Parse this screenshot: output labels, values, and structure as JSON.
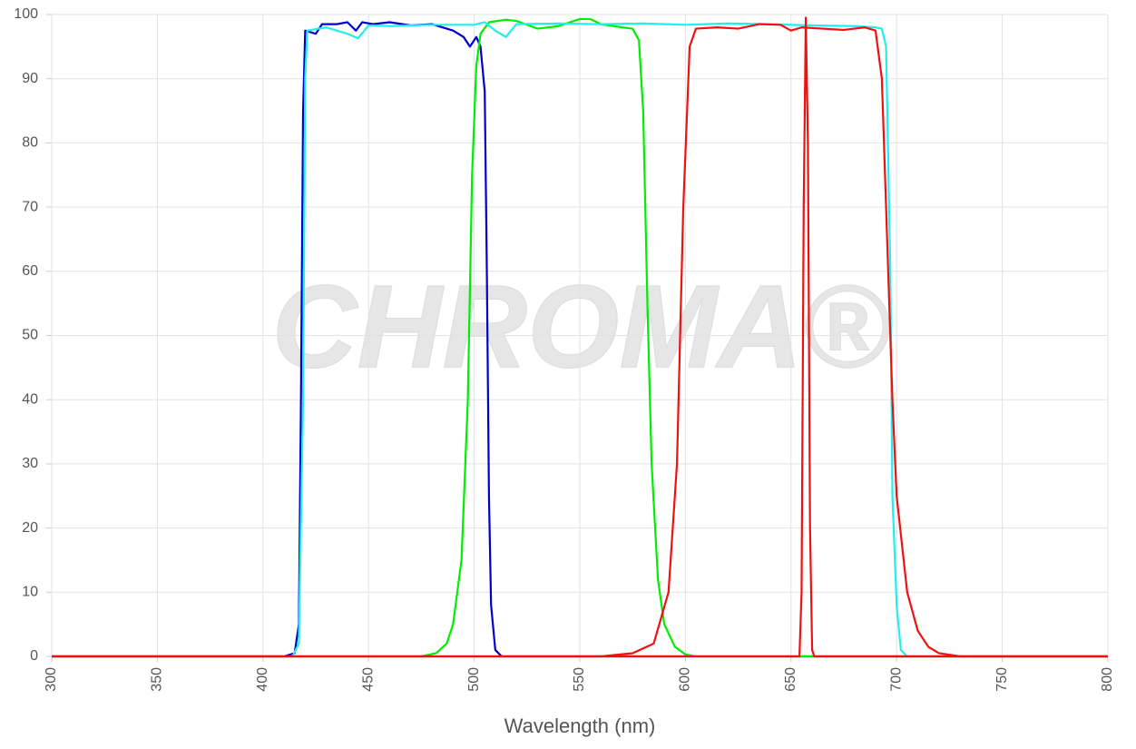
{
  "chart_data": {
    "type": "line",
    "xlabel": "Wavelength (nm)",
    "watermark": "CHROMA®",
    "xlim": [
      300,
      800
    ],
    "xticks": [
      300,
      350,
      400,
      450,
      500,
      550,
      600,
      650,
      700,
      750,
      800
    ],
    "ylim": [
      0,
      100
    ],
    "yticks": [
      0,
      10,
      20,
      30,
      40,
      50,
      60,
      70,
      80,
      90,
      100
    ],
    "grid": true,
    "series": [
      {
        "color": "#0000cc",
        "x": [
          300,
          410,
          415,
          417,
          418,
          419,
          420,
          425,
          428,
          435,
          440,
          444,
          447,
          452,
          460,
          470,
          480,
          490,
          495,
          498,
          501,
          503,
          505,
          506,
          507,
          508,
          510,
          513,
          800
        ],
        "values": [
          0,
          0,
          0.5,
          5,
          40,
          85,
          97.5,
          97,
          98.5,
          98.5,
          98.8,
          97.5,
          98.8,
          98.5,
          98.8,
          98.3,
          98.5,
          97.5,
          96.5,
          95,
          96.5,
          95,
          88,
          60,
          25,
          8,
          1,
          0,
          0
        ]
      },
      {
        "color": "#00ee00",
        "x": [
          300,
          475,
          482,
          487,
          490,
          494,
          497,
          499,
          501,
          503,
          507,
          515,
          520,
          530,
          540,
          550,
          555,
          560,
          570,
          575,
          578,
          580,
          582,
          584,
          587,
          590,
          595,
          600,
          605,
          800
        ],
        "values": [
          0,
          0,
          0.5,
          2,
          5,
          15,
          40,
          75,
          92,
          97,
          98.8,
          99.2,
          99,
          97.8,
          98.2,
          99.3,
          99.3,
          98.5,
          98,
          97.8,
          96,
          85,
          55,
          30,
          12,
          5,
          1.5,
          0.3,
          0,
          0
        ]
      },
      {
        "color": "#22eeee",
        "x": [
          300,
          414,
          417,
          419,
          420,
          421,
          430,
          440,
          445,
          450,
          460,
          480,
          500,
          505,
          510,
          515,
          520,
          540,
          560,
          580,
          600,
          620,
          640,
          660,
          680,
          690,
          693,
          695,
          697,
          698,
          700,
          702,
          705,
          800
        ],
        "values": [
          0,
          0,
          2,
          40,
          90,
          97.5,
          98,
          97,
          96.3,
          98.3,
          98.2,
          98.4,
          98.4,
          98.8,
          97.5,
          96.5,
          98.5,
          98.6,
          98.5,
          98.6,
          98.4,
          98.6,
          98.5,
          98.3,
          98.2,
          98,
          97.8,
          95,
          60,
          25,
          8,
          1,
          0,
          0
        ]
      },
      {
        "color": "#ee1111",
        "x": [
          300,
          560,
          575,
          585,
          592,
          596,
          599,
          602,
          605,
          615,
          625,
          635,
          645,
          650,
          655,
          665,
          675,
          685,
          690,
          693,
          696,
          698,
          700,
          705,
          710,
          715,
          720,
          730,
          800
        ],
        "values": [
          0,
          0,
          0.5,
          2,
          10,
          30,
          70,
          95,
          97.8,
          98,
          97.8,
          98.5,
          98.4,
          97.5,
          98,
          97.8,
          97.6,
          98,
          97.5,
          90,
          60,
          40,
          25,
          10,
          4,
          1.5,
          0.5,
          0,
          0
        ]
      },
      {
        "color": "#ee1111",
        "x": [
          300,
          654,
          655,
          656,
          657,
          658,
          659,
          660,
          661,
          800
        ],
        "values": [
          0,
          0,
          10,
          70,
          99.5,
          80,
          20,
          1,
          0,
          0
        ]
      }
    ]
  }
}
